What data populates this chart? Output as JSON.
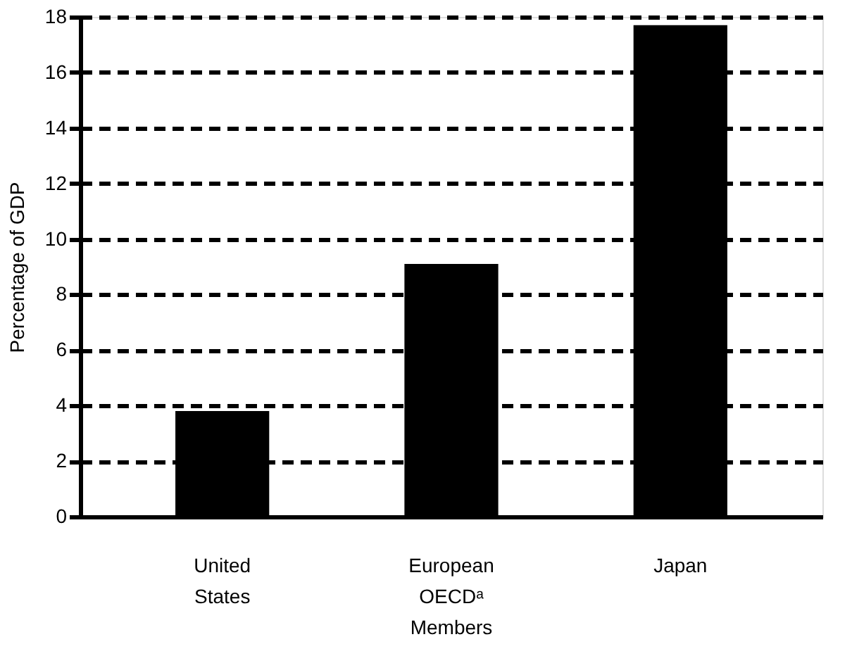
{
  "chart_data": {
    "type": "bar",
    "ylabel": "Percentage of GDP",
    "categories": [
      "United States",
      "European OECDᵃ Members",
      "Japan"
    ],
    "values": [
      3.8,
      9.1,
      17.7
    ],
    "color": "#000000",
    "ylim": [
      0,
      18
    ],
    "yticks": [
      0,
      2,
      4,
      6,
      8,
      10,
      12,
      14,
      16,
      18
    ],
    "grid": "y",
    "line_style": "dashed"
  }
}
